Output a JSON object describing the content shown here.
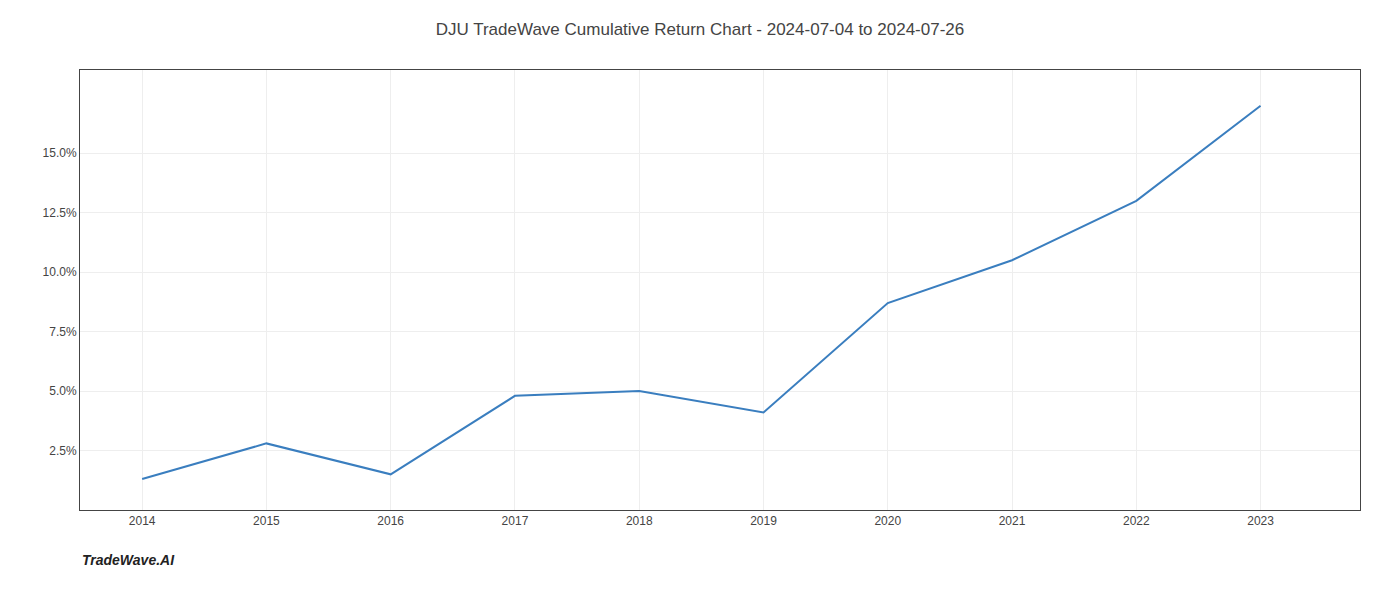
{
  "chart_data": {
    "type": "line",
    "title": "DJU TradeWave Cumulative Return Chart - 2024-07-04 to 2024-07-26",
    "annotations": [
      "TradeWave.AI"
    ],
    "x": [
      2014,
      2015,
      2016,
      2017,
      2018,
      2019,
      2020,
      2021,
      2022,
      2023
    ],
    "values": [
      1.3,
      2.8,
      1.5,
      4.8,
      5.0,
      4.1,
      8.7,
      10.5,
      13.0,
      17.0
    ],
    "color": "#3a7ebf",
    "xlim": [
      2013.5,
      2023.8
    ],
    "xticks": [
      2014,
      2015,
      2016,
      2017,
      2018,
      2019,
      2020,
      2021,
      2022,
      2023
    ],
    "ylim": [
      0,
      18.5
    ],
    "yticks": [
      {
        "value": 2.5,
        "label": "2.5%"
      },
      {
        "value": 5.0,
        "label": "5.0%"
      },
      {
        "value": 7.5,
        "label": "7.5%"
      },
      {
        "value": 10.0,
        "label": "10.0%"
      },
      {
        "value": 12.5,
        "label": "12.5%"
      },
      {
        "value": 15.0,
        "label": "15.0%"
      }
    ],
    "grid": true
  }
}
